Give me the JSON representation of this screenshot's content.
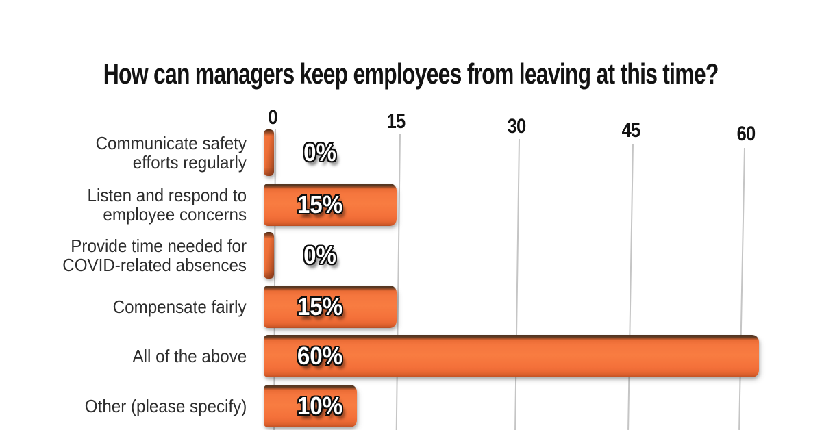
{
  "chart_data": {
    "type": "bar",
    "orientation": "horizontal",
    "title": "How can managers keep employees from leaving at this time?",
    "categories": [
      "Communicate safety\nefforts regularly",
      "Listen and respond to\nemployee concerns",
      "Provide time needed for\nCOVID-related absences",
      "Compensate fairly",
      "All of the above",
      "Other (please specify)"
    ],
    "values": [
      0,
      15,
      0,
      15,
      60,
      10
    ],
    "value_labels": [
      "0%",
      "15%",
      "0%",
      "15%",
      "60%",
      "10%"
    ],
    "xticks": [
      0,
      15,
      30,
      45,
      60
    ],
    "xtick_labels": [
      "0",
      "15",
      "30",
      "45",
      "60"
    ],
    "xlim": [
      0,
      60
    ],
    "xlabel": "",
    "ylabel": "",
    "legend": false,
    "grid": true,
    "colors": {
      "bar": "#f5763e",
      "bar_bevel": "#54361f",
      "grid": "#c5c5c5",
      "title_text": "#131313",
      "category_text": "#2d2d2d",
      "value_text": "#ffffff",
      "background": "#ffffff"
    }
  }
}
